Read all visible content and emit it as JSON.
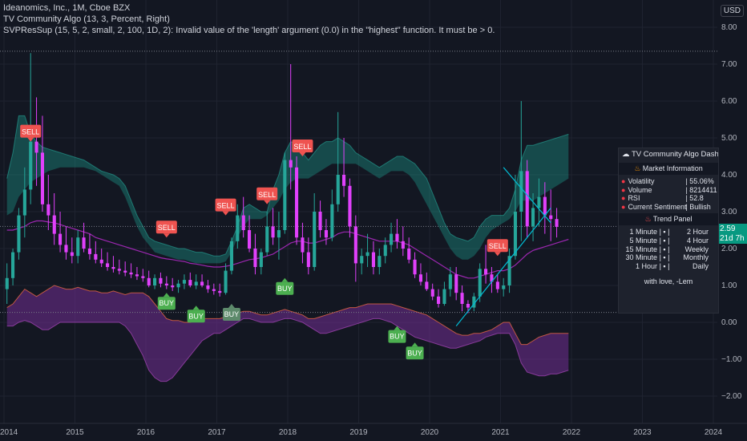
{
  "legend": {
    "symbol_line": "Ideanomics, Inc., 1M, Cboe BZX",
    "algo_line": "TV Community Algo (13, 3, Percent, Right)",
    "error_line": "SVPResSup (15, 5, 2, small, 2, 100, 1D, 2): Invalid value of the 'length' argument (0.0) in the \"highest\" function. It must be > 0."
  },
  "currency": "USD",
  "price_tag": {
    "price": "2.59",
    "countdown": "21d 7h"
  },
  "dashboard": {
    "title": "TV Community Algo Dashboa",
    "market_title": "Market Information",
    "market_rows": [
      {
        "label": "Volatility",
        "value": "| 55.06%"
      },
      {
        "label": "Volume",
        "value": "| 8214411"
      },
      {
        "label": "RSI",
        "value": "| 52.8"
      },
      {
        "label": "Current Sentiment",
        "value": "| Bullish"
      }
    ],
    "trend_title": "Trend Panel",
    "trend_rows": [
      {
        "left": "1 Minute",
        "right": "2 Hour"
      },
      {
        "left": "5 Minute",
        "right": "4 Hour"
      },
      {
        "left": "15 Minute",
        "right": "Weekly"
      },
      {
        "left": "30 Minute",
        "right": "Monthly"
      },
      {
        "left": "1 Hour",
        "right": "Daily"
      }
    ],
    "footer": "with love, -Lem"
  },
  "chart_data": {
    "type": "candlestick",
    "x_axis": {
      "ticks": [
        "2014",
        "2015",
        "2016",
        "2017",
        "2018",
        "2019",
        "2020",
        "2021",
        "2022",
        "2023",
        "2024"
      ]
    },
    "y_axis": {
      "ticks": [
        "8.00",
        "7.00",
        "6.00",
        "5.00",
        "4.00",
        "3.00",
        "2.00",
        "1.00",
        "0.00",
        "−1.00",
        "−2.00"
      ],
      "range": [
        -2.4,
        8.7
      ]
    },
    "colors": {
      "up": "#089981",
      "down": "#f23645",
      "bull_candle": "#26a69a",
      "bear_candle": "#e040fb",
      "buy": "#4caf50",
      "buy_weak": "#5d8a6b",
      "sell": "#ef5350",
      "upper_band": "#1b8a7f",
      "lower_band": "#6a2b8a"
    },
    "months_from": "2014-01",
    "candles": [
      [
        0.9,
        1.6,
        0.5,
        1.2
      ],
      [
        1.2,
        2.0,
        1.0,
        1.9
      ],
      [
        1.9,
        3.1,
        1.7,
        2.9
      ],
      [
        2.9,
        4.2,
        2.3,
        3.6
      ],
      [
        3.6,
        7.3,
        3.2,
        4.9
      ],
      [
        4.9,
        6.1,
        3.7,
        4.6
      ],
      [
        4.6,
        5.6,
        3.0,
        3.2
      ],
      [
        3.2,
        4.0,
        2.5,
        2.9
      ],
      [
        2.9,
        3.5,
        2.1,
        2.4
      ],
      [
        2.4,
        3.0,
        1.9,
        2.1
      ],
      [
        2.1,
        2.6,
        1.7,
        1.9
      ],
      [
        1.9,
        2.3,
        1.6,
        1.8
      ],
      [
        1.8,
        2.5,
        1.6,
        2.3
      ],
      [
        2.3,
        2.7,
        1.9,
        2.0
      ],
      [
        2.0,
        2.4,
        1.7,
        1.85
      ],
      [
        1.85,
        2.2,
        1.6,
        1.7
      ],
      [
        1.7,
        2.0,
        1.5,
        1.6
      ],
      [
        1.6,
        1.9,
        1.4,
        1.5
      ],
      [
        1.5,
        1.8,
        1.35,
        1.45
      ],
      [
        1.45,
        1.7,
        1.3,
        1.4
      ],
      [
        1.4,
        1.65,
        1.25,
        1.35
      ],
      [
        1.35,
        1.6,
        1.2,
        1.3
      ],
      [
        1.3,
        1.5,
        1.15,
        1.25
      ],
      [
        1.25,
        1.45,
        1.1,
        1.2
      ],
      [
        1.2,
        1.4,
        0.95,
        1.0
      ],
      [
        1.0,
        1.3,
        0.9,
        1.2
      ],
      [
        1.2,
        1.35,
        0.95,
        1.05
      ],
      [
        1.05,
        1.25,
        0.9,
        1.0
      ],
      [
        1.0,
        1.2,
        0.85,
        0.95
      ],
      [
        0.95,
        1.15,
        0.8,
        1.05
      ],
      [
        1.05,
        1.3,
        0.9,
        1.15
      ],
      [
        1.15,
        1.35,
        0.95,
        1.0
      ],
      [
        1.0,
        1.3,
        0.9,
        1.1
      ],
      [
        1.1,
        1.3,
        0.95,
        1.0
      ],
      [
        1.0,
        1.15,
        0.8,
        0.9
      ],
      [
        0.9,
        1.05,
        0.75,
        0.85
      ],
      [
        0.85,
        1.05,
        0.7,
        0.8
      ],
      [
        0.8,
        1.6,
        0.75,
        1.4
      ],
      [
        1.4,
        2.3,
        1.3,
        2.2
      ],
      [
        2.2,
        3.2,
        2.0,
        2.9
      ],
      [
        2.9,
        3.4,
        2.3,
        2.5
      ],
      [
        2.5,
        2.9,
        1.9,
        2.0
      ],
      [
        2.0,
        2.4,
        1.3,
        1.5
      ],
      [
        1.5,
        2.0,
        1.3,
        1.9
      ],
      [
        1.9,
        3.0,
        1.8,
        2.6
      ],
      [
        2.6,
        3.1,
        2.1,
        2.3
      ],
      [
        2.3,
        3.0,
        1.7,
        2.5
      ],
      [
        2.5,
        4.6,
        2.4,
        4.4
      ],
      [
        4.4,
        7.0,
        3.6,
        4.2
      ],
      [
        4.2,
        4.5,
        2.1,
        2.3
      ],
      [
        2.3,
        2.7,
        1.6,
        1.9
      ],
      [
        1.9,
        2.3,
        1.3,
        1.5
      ],
      [
        1.5,
        3.5,
        1.4,
        3.0
      ],
      [
        3.0,
        3.3,
        2.3,
        2.5
      ],
      [
        2.5,
        2.8,
        2.1,
        2.3
      ],
      [
        2.3,
        3.6,
        2.2,
        3.2
      ],
      [
        3.2,
        5.7,
        3.0,
        4.0
      ],
      [
        4.0,
        5.0,
        3.4,
        3.7
      ],
      [
        3.7,
        3.9,
        2.3,
        2.6
      ],
      [
        2.6,
        2.9,
        1.1,
        1.6
      ],
      [
        1.6,
        2.0,
        1.3,
        1.8
      ],
      [
        1.8,
        2.4,
        1.5,
        1.9
      ],
      [
        1.9,
        2.2,
        1.3,
        1.5
      ],
      [
        1.5,
        2.0,
        1.3,
        1.8
      ],
      [
        1.8,
        2.3,
        1.6,
        2.1
      ],
      [
        2.1,
        2.7,
        1.9,
        2.4
      ],
      [
        2.4,
        2.8,
        2.0,
        2.2
      ],
      [
        2.2,
        2.6,
        1.8,
        2.0
      ],
      [
        2.0,
        2.3,
        1.6,
        1.7
      ],
      [
        1.7,
        1.9,
        1.2,
        1.3
      ],
      [
        1.3,
        1.6,
        1.0,
        1.1
      ],
      [
        1.1,
        1.35,
        0.85,
        0.9
      ],
      [
        0.9,
        1.05,
        0.6,
        0.7
      ],
      [
        0.7,
        0.9,
        0.4,
        0.5
      ],
      [
        0.5,
        1.1,
        0.45,
        0.9
      ],
      [
        0.9,
        1.5,
        0.7,
        1.3
      ],
      [
        1.3,
        1.5,
        0.6,
        0.8
      ],
      [
        0.8,
        1.0,
        0.3,
        0.5
      ],
      [
        0.5,
        0.6,
        0.25,
        0.4
      ],
      [
        0.4,
        0.8,
        0.3,
        0.7
      ],
      [
        0.7,
        1.6,
        0.55,
        1.45
      ],
      [
        1.45,
        2.1,
        1.05,
        1.3
      ],
      [
        1.3,
        1.5,
        0.8,
        1.1
      ],
      [
        1.1,
        1.3,
        0.8,
        0.9
      ],
      [
        0.9,
        1.2,
        0.7,
        1.0
      ],
      [
        1.0,
        2.0,
        0.8,
        1.8
      ],
      [
        1.8,
        4.0,
        1.7,
        3.0
      ],
      [
        3.0,
        6.0,
        2.2,
        4.1
      ],
      [
        4.1,
        4.4,
        2.3,
        2.6
      ],
      [
        2.6,
        3.5,
        2.2,
        3.1
      ],
      [
        3.1,
        3.9,
        2.6,
        3.4
      ],
      [
        3.4,
        3.8,
        2.4,
        2.9
      ],
      [
        2.9,
        3.6,
        2.2,
        2.8
      ],
      [
        2.8,
        3.1,
        2.3,
        2.59
      ]
    ],
    "upper_band": [
      3.9,
      4.6,
      5.6,
      5.6,
      5.1,
      4.9,
      4.75,
      4.7,
      4.65,
      4.6,
      4.55,
      4.5,
      4.45,
      4.4,
      4.3,
      4.2,
      4.1,
      4.05,
      4.0,
      3.9,
      3.7,
      3.3,
      2.9,
      2.6,
      2.3,
      2.2,
      2.15,
      2.1,
      2.05,
      2.0,
      2.0,
      1.95,
      1.9,
      1.9,
      1.85,
      1.8,
      1.8,
      1.85,
      2.2,
      2.6,
      3.1,
      3.2,
      3.1,
      3.0,
      3.0,
      3.6,
      4.0,
      4.6,
      4.9,
      4.8,
      4.6,
      4.4,
      4.6,
      4.8,
      4.9,
      4.9,
      5.0,
      4.9,
      4.8,
      4.6,
      4.5,
      4.4,
      4.3,
      4.2,
      4.3,
      4.4,
      4.5,
      4.5,
      4.4,
      4.3,
      4.1,
      3.9,
      3.5,
      3.1,
      2.7,
      2.4,
      2.3,
      2.25,
      2.2,
      2.3,
      2.6,
      2.8,
      2.9,
      2.9,
      2.9,
      3.1,
      3.6,
      4.4,
      4.8,
      4.8,
      4.85,
      4.9,
      4.95,
      5.0,
      5.05,
      5.1
    ],
    "upper_band_low": [
      2.9,
      3.0,
      3.4,
      3.6,
      3.8,
      3.9,
      4.0,
      4.1,
      4.15,
      4.2,
      4.2,
      4.2,
      4.2,
      4.2,
      4.15,
      4.1,
      4.0,
      3.9,
      3.8,
      3.7,
      3.4,
      3.0,
      2.6,
      2.3,
      2.1,
      1.9,
      1.85,
      1.8,
      1.75,
      1.7,
      1.7,
      1.65,
      1.6,
      1.6,
      1.6,
      1.6,
      1.6,
      1.65,
      1.9,
      2.3,
      2.6,
      2.8,
      2.8,
      2.8,
      2.9,
      3.1,
      3.3,
      3.6,
      3.8,
      3.9,
      3.9,
      3.9,
      4.0,
      4.1,
      4.2,
      4.3,
      4.3,
      4.3,
      4.3,
      4.3,
      4.2,
      4.1,
      4.0,
      3.9,
      4.0,
      4.1,
      4.1,
      4.1,
      4.0,
      3.8,
      3.5,
      3.2,
      2.9,
      2.6,
      2.3,
      2.0,
      1.8,
      1.7,
      1.7,
      1.8,
      2.0,
      2.3,
      2.5,
      2.6,
      2.7,
      2.8,
      3.0,
      3.3,
      3.3,
      3.3,
      3.4,
      3.5,
      3.6,
      3.7,
      3.8,
      3.9
    ],
    "lower_band_top": [
      0.4,
      0.5,
      0.7,
      0.9,
      0.8,
      0.7,
      0.8,
      0.9,
      1.0,
      0.95,
      0.9,
      0.9,
      0.95,
      0.9,
      0.85,
      0.85,
      0.8,
      0.8,
      0.85,
      0.8,
      0.75,
      0.8,
      0.8,
      0.8,
      0.7,
      0.5,
      0.3,
      0.1,
      0.05,
      0.05,
      0.0,
      0.0,
      0.05,
      0.1,
      0.1,
      0.1,
      0.1,
      0.15,
      0.2,
      0.25,
      0.3,
      0.3,
      0.25,
      0.2,
      0.2,
      0.25,
      0.3,
      0.35,
      0.3,
      0.25,
      0.2,
      0.1,
      0.1,
      0.15,
      0.2,
      0.25,
      0.3,
      0.35,
      0.4,
      0.4,
      0.45,
      0.5,
      0.5,
      0.5,
      0.5,
      0.5,
      0.45,
      0.4,
      0.35,
      0.3,
      0.25,
      0.2,
      0.1,
      0.0,
      -0.1,
      -0.2,
      -0.3,
      -0.35,
      -0.35,
      -0.3,
      -0.3,
      -0.25,
      -0.2,
      -0.1,
      0.0,
      0.0,
      -0.3,
      -0.6,
      -0.6,
      -0.5,
      -0.4,
      -0.35,
      -0.3,
      -0.3,
      -0.3,
      -0.3
    ],
    "lower_band_bottom": [
      -0.1,
      -0.1,
      0.0,
      0.05,
      0.0,
      -0.1,
      -0.2,
      -0.2,
      -0.1,
      0.0,
      0.0,
      0.0,
      0.0,
      0.0,
      0.0,
      0.0,
      0.0,
      0.0,
      0.0,
      0.0,
      -0.1,
      -0.3,
      -0.6,
      -0.9,
      -1.3,
      -1.5,
      -1.6,
      -1.6,
      -1.5,
      -1.3,
      -1.1,
      -0.9,
      -0.7,
      -0.5,
      -0.4,
      -0.3,
      -0.3,
      -0.2,
      -0.1,
      0.0,
      0.1,
      0.1,
      0.05,
      0.0,
      0.0,
      0.0,
      0.05,
      0.1,
      0.1,
      0.05,
      0.0,
      -0.1,
      -0.2,
      -0.3,
      -0.3,
      -0.25,
      -0.2,
      -0.15,
      -0.1,
      -0.05,
      0.0,
      0.05,
      0.1,
      0.1,
      0.05,
      0.0,
      -0.1,
      -0.2,
      -0.3,
      -0.4,
      -0.45,
      -0.5,
      -0.55,
      -0.6,
      -0.65,
      -0.7,
      -0.7,
      -0.65,
      -0.6,
      -0.55,
      -0.5,
      -0.4,
      -0.35,
      -0.3,
      -0.3,
      -0.3,
      -0.6,
      -1.1,
      -1.35,
      -1.4,
      -1.45,
      -1.45,
      -1.4,
      -1.4,
      -1.35,
      -1.3
    ],
    "ma_line": [
      2.5,
      2.5,
      2.55,
      2.6,
      2.7,
      2.75,
      2.75,
      2.72,
      2.7,
      2.65,
      2.6,
      2.55,
      2.5,
      2.45,
      2.4,
      2.3,
      2.25,
      2.2,
      2.15,
      2.1,
      2.05,
      2.0,
      1.95,
      1.9,
      1.85,
      1.8,
      1.75,
      1.72,
      1.7,
      1.67,
      1.65,
      1.6,
      1.58,
      1.55,
      1.52,
      1.5,
      1.5,
      1.52,
      1.55,
      1.6,
      1.65,
      1.7,
      1.72,
      1.75,
      1.8,
      1.85,
      1.95,
      2.05,
      2.15,
      2.2,
      2.2,
      2.15,
      2.15,
      2.2,
      2.25,
      2.3,
      2.4,
      2.45,
      2.45,
      2.4,
      2.35,
      2.3,
      2.25,
      2.2,
      2.2,
      2.2,
      2.2,
      2.15,
      2.1,
      2.0,
      1.9,
      1.8,
      1.7,
      1.6,
      1.5,
      1.4,
      1.3,
      1.25,
      1.2,
      1.2,
      1.25,
      1.3,
      1.35,
      1.4,
      1.4,
      1.45,
      1.55,
      1.7,
      1.85,
      1.95,
      2.0,
      2.05,
      2.1,
      2.15,
      2.2,
      2.25
    ],
    "signals": [
      {
        "label": "SELL",
        "kind": "sell",
        "month": 4,
        "price": 4.9
      },
      {
        "label": "SELL",
        "kind": "sell",
        "month": 27,
        "price": 2.3
      },
      {
        "label": "SELL",
        "kind": "sell",
        "month": 37,
        "price": 2.9
      },
      {
        "label": "SELL",
        "kind": "sell",
        "month": 44,
        "price": 3.2
      },
      {
        "label": "SELL",
        "kind": "sell",
        "month": 50,
        "price": 4.5
      },
      {
        "label": "SELL",
        "kind": "sell",
        "month": 83,
        "price": 1.8
      },
      {
        "label": "BUY",
        "kind": "buy",
        "month": 27,
        "price": 0.8
      },
      {
        "label": "BUY",
        "kind": "buy",
        "month": 32,
        "price": 0.45
      },
      {
        "label": "BUY",
        "kind": "buy_weak",
        "month": 38,
        "price": 0.5
      },
      {
        "label": "BUY",
        "kind": "buy",
        "month": 47,
        "price": 1.2
      },
      {
        "label": "BUY",
        "kind": "buy",
        "month": 66,
        "price": -0.1
      },
      {
        "label": "BUY",
        "kind": "buy",
        "month": 69,
        "price": -0.55
      }
    ],
    "hlines": [
      7.35,
      2.6,
      0.27
    ],
    "wedge": {
      "upper": [
        [
          84,
          4.2
        ],
        [
          92,
          2.7
        ]
      ],
      "lower": [
        [
          76,
          -0.1
        ],
        [
          92,
          3.1
        ]
      ]
    }
  }
}
